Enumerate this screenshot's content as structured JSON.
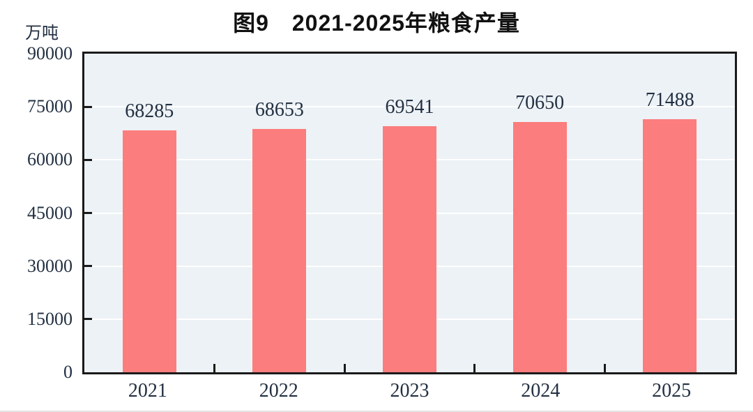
{
  "chart": {
    "title": "图9　2021-2025年粮食产量",
    "unit": "万吨"
  },
  "chart_data": {
    "type": "bar",
    "title": "图9　2021-2025年粮食产量",
    "categories": [
      "2021",
      "2022",
      "2023",
      "2024",
      "2025"
    ],
    "values": [
      68285,
      68653,
      69541,
      70650,
      71488
    ],
    "value_labels": [
      "68285",
      "68653",
      "69541",
      "70650",
      "71488"
    ],
    "xlabel": "",
    "ylabel": "万吨",
    "ylim": [
      0,
      90000
    ],
    "yticks": [
      0,
      15000,
      30000,
      45000,
      60000,
      75000,
      90000
    ],
    "ytick_labels": [
      "0",
      "15000",
      "30000",
      "45000",
      "60000",
      "75000",
      "90000"
    ],
    "grid": true,
    "legend_position": "none",
    "colors": {
      "bar_fill": "#fc7d7d",
      "plot_background": "#edf2f6",
      "gridline": "#ffffff",
      "axis_border": "#1a1a1a",
      "number_text": "#223042",
      "title_text": "#111111"
    }
  }
}
